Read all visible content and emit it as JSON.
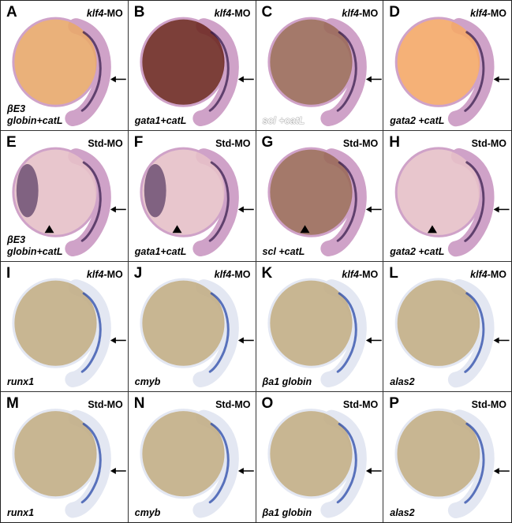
{
  "panels": [
    {
      "letter": "A",
      "mo_gene": "klf4",
      "mo_suffix": "-MO",
      "probe_line1": "βE3",
      "probe_line2": "globin+catL",
      "stain": "nbt",
      "yolk": "orange",
      "hasArrow": true,
      "hasArrowhead": false
    },
    {
      "letter": "B",
      "mo_gene": "klf4",
      "mo_suffix": "-MO",
      "probe_line1": "",
      "probe_line2": "gata1+catL",
      "stain": "nbt",
      "yolk": "dark",
      "hasArrow": true,
      "hasArrowhead": false
    },
    {
      "letter": "C",
      "mo_gene": "klf4",
      "mo_suffix": "-MO",
      "probe_line1": "",
      "probe_line2": "scl +catL",
      "stain": "nbt",
      "yolk": "brown",
      "hasArrow": true,
      "hasArrowhead": false
    },
    {
      "letter": "D",
      "mo_gene": "klf4",
      "mo_suffix": "-MO",
      "probe_line1": "",
      "probe_line2": "gata2 +catL",
      "stain": "nbt",
      "yolk": "bright",
      "hasArrow": true,
      "hasArrowhead": false
    },
    {
      "letter": "E",
      "mo_gene": "",
      "mo_suffix": "Std-MO",
      "probe_line1": "βE3",
      "probe_line2": "globin+catL",
      "stain": "nbt",
      "yolk": "pinkdots",
      "hasArrow": true,
      "hasArrowhead": true
    },
    {
      "letter": "F",
      "mo_gene": "",
      "mo_suffix": "Std-MO",
      "probe_line1": "",
      "probe_line2": "gata1+catL",
      "stain": "nbt",
      "yolk": "pinkdots",
      "hasArrow": true,
      "hasArrowhead": true
    },
    {
      "letter": "G",
      "mo_gene": "",
      "mo_suffix": "Std-MO",
      "probe_line1": "",
      "probe_line2": "scl +catL",
      "stain": "nbt",
      "yolk": "brown",
      "hasArrow": true,
      "hasArrowhead": true
    },
    {
      "letter": "H",
      "mo_gene": "",
      "mo_suffix": "Std-MO",
      "probe_line1": "",
      "probe_line2": "gata2 +catL",
      "stain": "nbt",
      "yolk": "pale",
      "hasArrow": true,
      "hasArrowhead": true
    },
    {
      "letter": "I",
      "mo_gene": "klf4",
      "mo_suffix": "-MO",
      "probe_line1": "",
      "probe_line2": "runx1",
      "stain": "blue",
      "yolk": "tan",
      "hasArrow": true,
      "hasArrowhead": false
    },
    {
      "letter": "J",
      "mo_gene": "klf4",
      "mo_suffix": "-MO",
      "probe_line1": "",
      "probe_line2": "cmyb",
      "stain": "blue",
      "yolk": "tan",
      "hasArrow": true,
      "hasArrowhead": false
    },
    {
      "letter": "K",
      "mo_gene": "klf4",
      "mo_suffix": "-MO",
      "probe_line1": "",
      "probe_line2": "βa1 globin",
      "stain": "blue",
      "yolk": "tan",
      "hasArrow": true,
      "hasArrowhead": false
    },
    {
      "letter": "L",
      "mo_gene": "klf4",
      "mo_suffix": "-MO",
      "probe_line1": "",
      "probe_line2": "alas2",
      "stain": "blue",
      "yolk": "tan",
      "hasArrow": true,
      "hasArrowhead": false
    },
    {
      "letter": "M",
      "mo_gene": "",
      "mo_suffix": "Std-MO",
      "probe_line1": "",
      "probe_line2": "runx1",
      "stain": "blue",
      "yolk": "tan",
      "hasArrow": true,
      "hasArrowhead": false
    },
    {
      "letter": "N",
      "mo_gene": "",
      "mo_suffix": "Std-MO",
      "probe_line1": "",
      "probe_line2": "cmyb",
      "stain": "blue",
      "yolk": "tan",
      "hasArrow": true,
      "hasArrowhead": false
    },
    {
      "letter": "O",
      "mo_gene": "",
      "mo_suffix": "Std-MO",
      "probe_line1": "",
      "probe_line2": "βa1 globin",
      "stain": "blue",
      "yolk": "tan",
      "hasArrow": true,
      "hasArrowhead": false
    },
    {
      "letter": "P",
      "mo_gene": "",
      "mo_suffix": "Std-MO",
      "probe_line1": "",
      "probe_line2": "alas2",
      "stain": "blue",
      "yolk": "tan",
      "hasArrow": true,
      "hasArrowhead": false
    }
  ],
  "colors": {
    "nbt_background": "#ffffff",
    "nbt_body": "#cfa2c8",
    "nbt_stain": "#3a1f4f",
    "blue_body": "#e3e7f2",
    "blue_stain": "#2a4aa8",
    "yolk_orange": "#e8a86c",
    "yolk_dark": "#6e2a24",
    "yolk_brown": "#9a6a5a",
    "yolk_bright": "#f4a868",
    "yolk_pale": "#e6c0c8",
    "yolk_tan": "#c2ae86",
    "arrow": "#000000"
  }
}
